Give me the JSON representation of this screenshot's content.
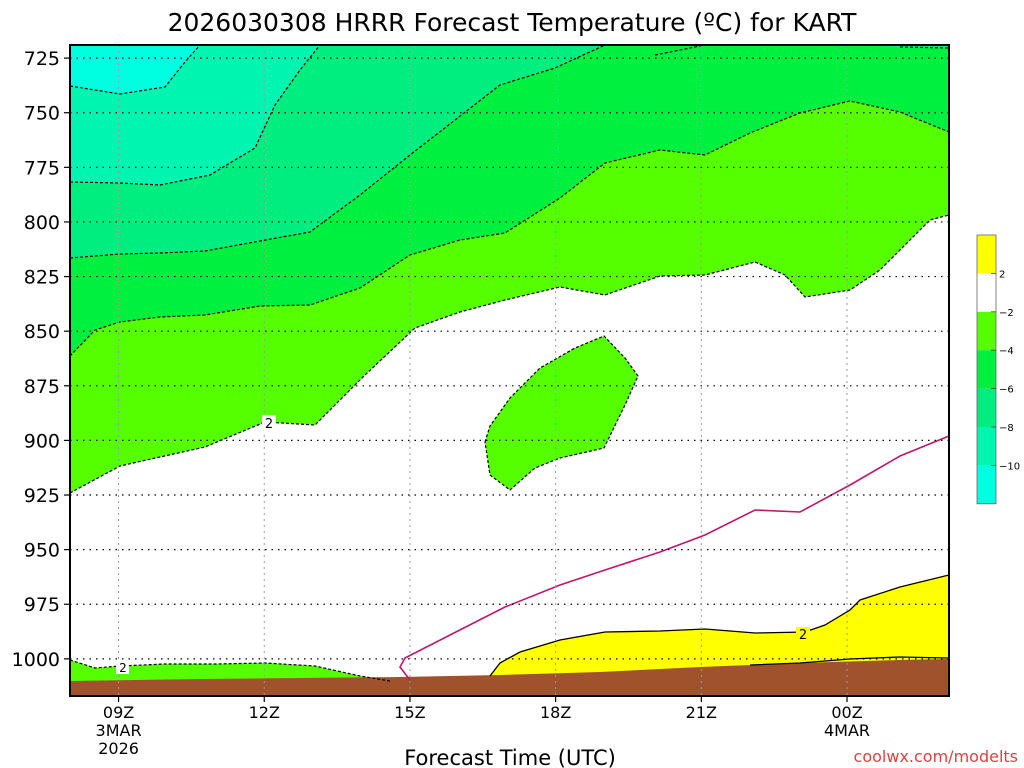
{
  "chart_data": {
    "type": "contour",
    "title": "2026030308 HRRR Forecast Temperature (ºC) for KART",
    "xlabel": "Forecast Time (UTC)",
    "ylabel": "",
    "y_axis": "pressure (hPa), increasing downward",
    "ylim": [
      1017,
      719
    ],
    "xlim_hours_from_09Z": [
      -1,
      17.1
    ],
    "y_ticks": [
      "725",
      "750",
      "775",
      "800",
      "825",
      "850",
      "875",
      "900",
      "925",
      "950",
      "975",
      "1000"
    ],
    "x_ticks": [
      {
        "line1": "09Z",
        "line2": "3MAR",
        "line3": "2026"
      },
      {
        "line1": "12Z",
        "line2": "",
        "line3": ""
      },
      {
        "line1": "15Z",
        "line2": "",
        "line3": ""
      },
      {
        "line1": "18Z",
        "line2": "",
        "line3": ""
      },
      {
        "line1": "21Z",
        "line2": "",
        "line3": ""
      },
      {
        "line1": "00Z",
        "line2": "4MAR",
        "line3": ""
      }
    ],
    "grid": true,
    "contour_levels_c": [
      -10,
      -8,
      -6,
      -4,
      -2,
      2
    ],
    "contour_labels_on_chart": [
      "2",
      "2",
      "2"
    ],
    "fill_colors": {
      "lt_-10": "#00ffe0",
      "-10_to_-8": "#00f5b0",
      "-8_to_-6": "#00ee80",
      "-6_to_-4": "#00f040",
      "-4_to_-2": "#55ff00",
      "-2_to_2": "#ffffff",
      "gt_2": "#ffff00",
      "ground": "#a0522d"
    },
    "freezing_line_color": "#c0166e",
    "colorbar": {
      "position": "right",
      "labels": [
        "2",
        "−2",
        "−4",
        "−6",
        "−8",
        "−10"
      ],
      "colors": [
        "#ffff00",
        "#ffffff",
        "#55ff00",
        "#00f040",
        "#00ee80",
        "#00f5b0",
        "#00ffe0"
      ]
    }
  },
  "watermark": "coolwx.com/modelts",
  "colors": {
    "watermark": "#e04040"
  }
}
